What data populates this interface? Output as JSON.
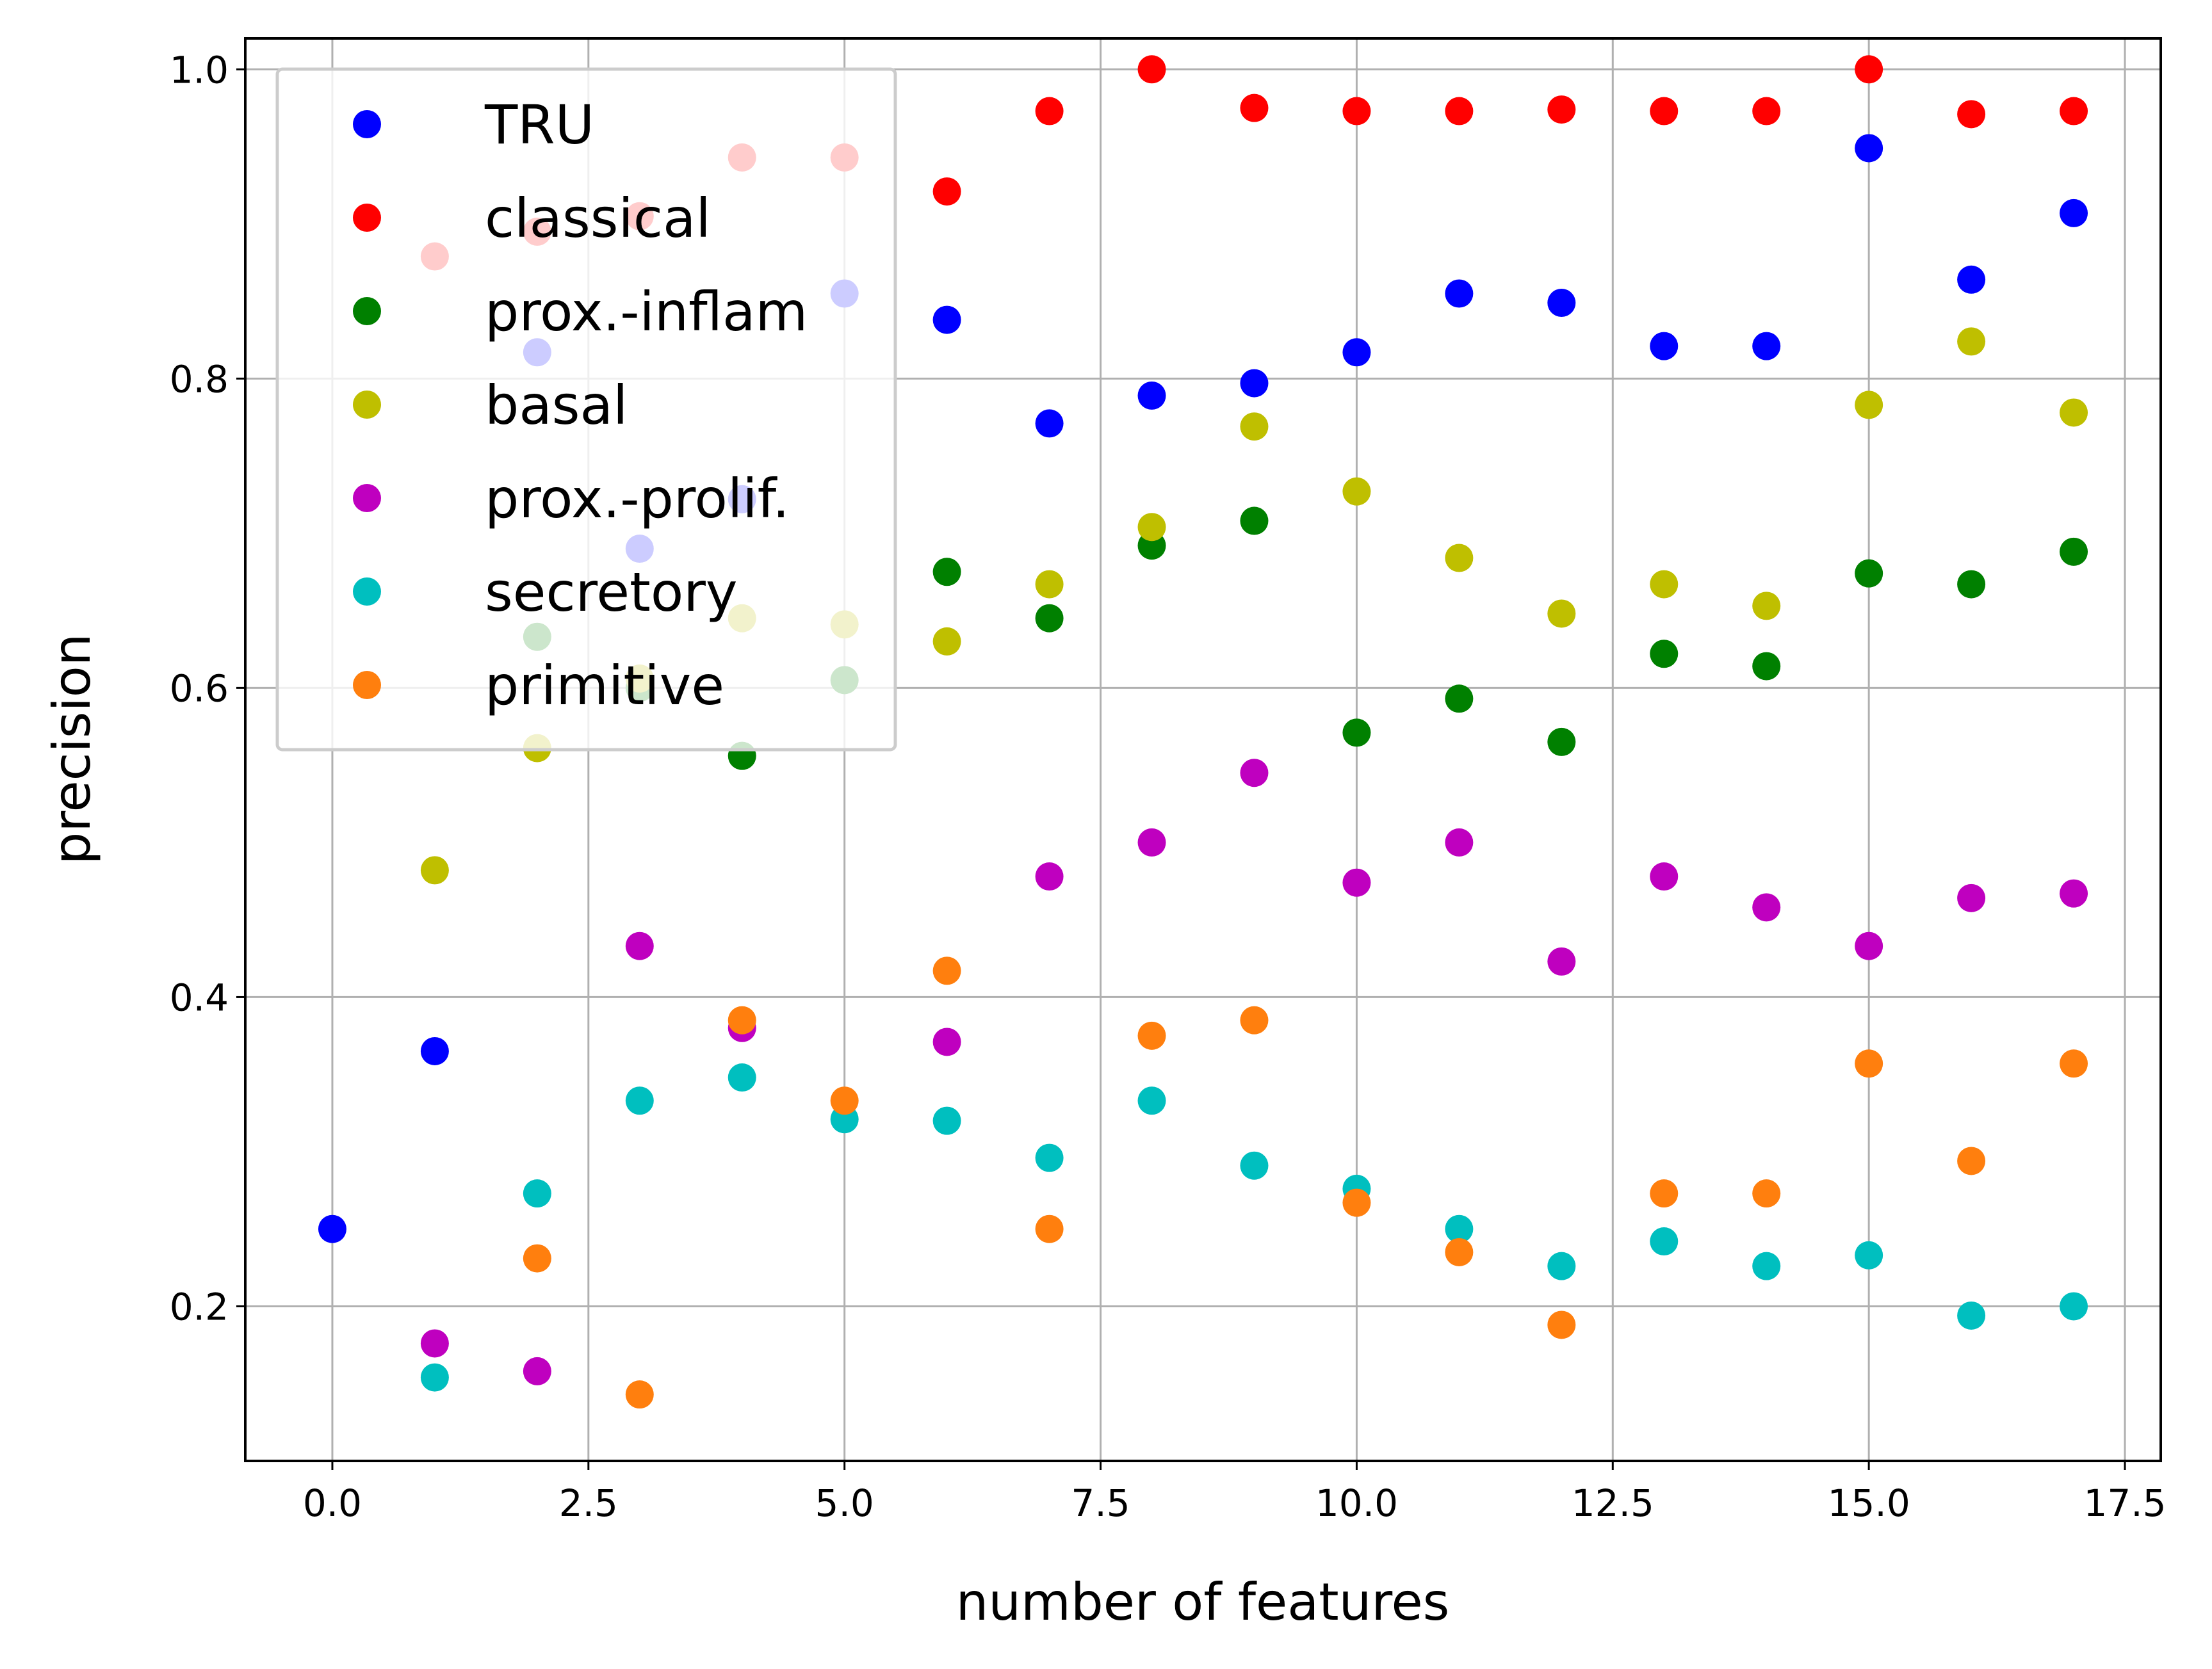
{
  "chart_data": {
    "type": "scatter",
    "xlabel": "number of features",
    "ylabel": "precision",
    "xlim": [
      -0.85,
      17.85
    ],
    "ylim": [
      0.1,
      1.02
    ],
    "xticks": [
      "0.0",
      "2.5",
      "5.0",
      "7.5",
      "10.0",
      "12.5",
      "15.0",
      "17.5"
    ],
    "yticks": [
      "0.2",
      "0.4",
      "0.6",
      "0.8",
      "1.0"
    ],
    "grid": true,
    "legend_position": "upper-left",
    "series": [
      {
        "name": "TRU",
        "color": "#0000ff",
        "x": [
          0,
          1,
          2,
          3,
          4,
          5,
          6,
          7,
          8,
          9,
          10,
          11,
          12,
          13,
          14,
          15,
          16,
          17
        ],
        "y": [
          0.25,
          0.365,
          0.817,
          0.69,
          0.722,
          0.855,
          0.838,
          0.771,
          0.789,
          0.797,
          0.817,
          0.855,
          0.849,
          0.821,
          0.821,
          0.949,
          0.864,
          0.907
        ]
      },
      {
        "name": "classical",
        "color": "#ff0000",
        "x": [
          1,
          2,
          3,
          4,
          5,
          6,
          7,
          8,
          9,
          10,
          11,
          12,
          13,
          14,
          15,
          16,
          17
        ],
        "y": [
          0.879,
          0.895,
          0.905,
          0.943,
          0.943,
          0.921,
          0.973,
          1.0,
          0.975,
          0.973,
          0.973,
          0.974,
          0.973,
          0.973,
          1.0,
          0.971,
          0.973
        ]
      },
      {
        "name": "prox.-inflam",
        "color": "#008000",
        "x": [
          2,
          3,
          4,
          5,
          6,
          7,
          8,
          9,
          10,
          11,
          12,
          13,
          14,
          15,
          16,
          17
        ],
        "y": [
          0.633,
          0.6,
          0.556,
          0.605,
          0.675,
          0.645,
          0.692,
          0.708,
          0.571,
          0.593,
          0.565,
          0.622,
          0.614,
          0.674,
          0.667,
          0.688
        ]
      },
      {
        "name": "basal",
        "color": "#bfbf00",
        "x": [
          1,
          2,
          3,
          4,
          5,
          6,
          7,
          8,
          9,
          10,
          11,
          12,
          13,
          14,
          15,
          16,
          17
        ],
        "y": [
          0.482,
          0.561,
          0.606,
          0.645,
          0.641,
          0.63,
          0.667,
          0.704,
          0.769,
          0.727,
          0.684,
          0.648,
          0.667,
          0.653,
          0.783,
          0.824,
          0.778
        ]
      },
      {
        "name": "prox.-prolif.",
        "color": "#bf00bf",
        "x": [
          1,
          2,
          3,
          4,
          6,
          7,
          8,
          9,
          10,
          11,
          12,
          13,
          14,
          15,
          16,
          17
        ],
        "y": [
          0.176,
          0.158,
          0.433,
          0.38,
          0.371,
          0.478,
          0.5,
          0.545,
          0.474,
          0.5,
          0.423,
          0.478,
          0.458,
          0.433,
          0.464,
          0.467
        ]
      },
      {
        "name": "secretory",
        "color": "#00bfbf",
        "x": [
          1,
          2,
          3,
          4,
          5,
          6,
          7,
          8,
          9,
          10,
          11,
          12,
          13,
          14,
          15,
          16,
          17
        ],
        "y": [
          0.154,
          0.273,
          0.333,
          0.348,
          0.321,
          0.32,
          0.296,
          0.333,
          0.291,
          0.276,
          0.25,
          0.226,
          0.242,
          0.226,
          0.233,
          0.194,
          0.2
        ]
      },
      {
        "name": "primitive",
        "color": "#ff7f0e",
        "x": [
          2,
          3,
          4,
          5,
          6,
          7,
          8,
          9,
          10,
          11,
          12,
          13,
          14,
          15,
          16,
          17
        ],
        "y": [
          0.231,
          0.143,
          0.385,
          0.333,
          0.417,
          0.25,
          0.375,
          0.385,
          0.267,
          0.235,
          0.188,
          0.273,
          0.273,
          0.357,
          0.294,
          0.357
        ]
      }
    ]
  }
}
